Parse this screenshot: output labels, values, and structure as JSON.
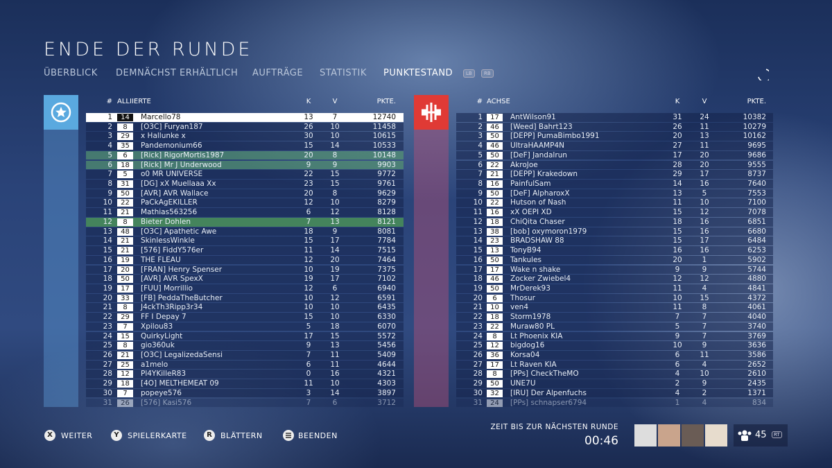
{
  "header": {
    "title": "ENDE DER RUNDE",
    "tabs": [
      "ÜBERBLICK",
      "DEMNÄCHST ERHÄLTLICH",
      "AUFTRÄGE",
      "STATISTIK",
      "PUNKTESTAND"
    ],
    "tab_badges": [
      "LB",
      "RB"
    ]
  },
  "teams": [
    {
      "header": {
        "rank": "#",
        "name": "ALLIIERTE",
        "k": "K",
        "v": "V",
        "score": "PKTE."
      },
      "rows": [
        [
          1,
          14,
          "Marcello78",
          13,
          7,
          12740
        ],
        [
          2,
          8,
          "[O3C] Furyan187",
          26,
          10,
          11458
        ],
        [
          3,
          29,
          "x Hallunke x",
          30,
          10,
          10615
        ],
        [
          4,
          35,
          "Pandemonium66",
          15,
          14,
          10533
        ],
        [
          5,
          6,
          "[Rick] RigorMortis1987",
          20,
          8,
          10148
        ],
        [
          6,
          18,
          "[Rick] Mr J Underwood",
          9,
          9,
          9903
        ],
        [
          7,
          5,
          "o0 MR UNIVERSE",
          22,
          15,
          9772
        ],
        [
          8,
          31,
          "[DG] xX Muellaaa Xx",
          23,
          15,
          9761
        ],
        [
          9,
          50,
          "[AVR] AVR Wallace",
          20,
          8,
          9629
        ],
        [
          10,
          22,
          "PaCkAgEKILLER",
          12,
          10,
          8279
        ],
        [
          11,
          21,
          "Mathias563256",
          6,
          12,
          8128
        ],
        [
          12,
          8,
          "Bieter Dohlen",
          7,
          13,
          8121
        ],
        [
          13,
          48,
          "[O3C] Apathetic Awe",
          18,
          9,
          8081
        ],
        [
          14,
          21,
          "SkinlessWinkle",
          15,
          17,
          7784
        ],
        [
          15,
          21,
          "[576] FiddY576er",
          11,
          14,
          7515
        ],
        [
          16,
          19,
          "THE FLEAU",
          12,
          20,
          7464
        ],
        [
          17,
          20,
          "[FRAN] Henry Spenser",
          10,
          19,
          7375
        ],
        [
          18,
          50,
          "[AVR] AVR SpexX",
          19,
          17,
          7102
        ],
        [
          19,
          17,
          "[FUU] Morrillio",
          12,
          6,
          6940
        ],
        [
          20,
          33,
          "[FB] PeddaTheButcher",
          10,
          12,
          6591
        ],
        [
          21,
          8,
          "J4ckTh3Ripp3r34",
          10,
          10,
          6435
        ],
        [
          22,
          29,
          "FF I Depay 7",
          15,
          10,
          6330
        ],
        [
          23,
          7,
          "Xpilou83",
          5,
          18,
          6070
        ],
        [
          24,
          15,
          "QuirkyLight",
          17,
          15,
          5572
        ],
        [
          25,
          8,
          "gio360uk",
          9,
          13,
          5456
        ],
        [
          26,
          21,
          "[O3C] LegalizedaSensi",
          7,
          11,
          5409
        ],
        [
          27,
          25,
          "a1melo",
          6,
          11,
          4644
        ],
        [
          28,
          12,
          "Pl4YKilleR83",
          0,
          16,
          4321
        ],
        [
          29,
          18,
          "[4O] MELTHEMEAT 09",
          11,
          10,
          4303
        ],
        [
          30,
          7,
          "popeye576",
          3,
          14,
          3897
        ],
        [
          31,
          26,
          "[576] Kasi576",
          7,
          6,
          3712
        ]
      ]
    },
    {
      "header": {
        "rank": "#",
        "name": "ACHSE",
        "k": "K",
        "v": "V",
        "score": "PKTE."
      },
      "rows": [
        [
          1,
          17,
          "AntWilson91",
          31,
          24,
          10382
        ],
        [
          2,
          46,
          "[Weed] Bahrt123",
          26,
          11,
          10279
        ],
        [
          3,
          50,
          "[DEPP] PumaBimbo1991",
          20,
          13,
          10162
        ],
        [
          4,
          46,
          "UltraHAAMP4N",
          27,
          11,
          9695
        ],
        [
          5,
          50,
          "[DeF] Jandalrun",
          17,
          20,
          9686
        ],
        [
          6,
          22,
          "AkroJoe",
          28,
          20,
          9555
        ],
        [
          7,
          21,
          "[DEPP] Krakedown",
          29,
          17,
          8737
        ],
        [
          8,
          16,
          "PainfulSam",
          14,
          16,
          7640
        ],
        [
          9,
          50,
          "[DeF] AlpharoxX",
          13,
          5,
          7553
        ],
        [
          10,
          22,
          "Hutson of Nash",
          11,
          10,
          7100
        ],
        [
          11,
          16,
          "xX OEPI XD",
          15,
          12,
          7078
        ],
        [
          12,
          18,
          "ChiQita Chaser",
          18,
          16,
          6851
        ],
        [
          13,
          38,
          "[bob] oxymoron1979",
          15,
          16,
          6680
        ],
        [
          14,
          23,
          "BRADSHAW 88",
          15,
          17,
          6484
        ],
        [
          15,
          13,
          "TonyB94",
          16,
          16,
          6253
        ],
        [
          16,
          50,
          "Tankules",
          20,
          1,
          5902
        ],
        [
          17,
          17,
          "Wake n shake",
          9,
          9,
          5744
        ],
        [
          18,
          46,
          "Zocker Zwiebel4",
          12,
          12,
          4880
        ],
        [
          19,
          50,
          "MrDerek93",
          11,
          4,
          4841
        ],
        [
          20,
          6,
          "Thosur",
          10,
          15,
          4372
        ],
        [
          21,
          10,
          "ven4",
          11,
          8,
          4061
        ],
        [
          22,
          18,
          "Storm1978",
          7,
          7,
          4040
        ],
        [
          23,
          22,
          "Muraw80 PL",
          5,
          7,
          3740
        ],
        [
          24,
          8,
          "Lt Phoenix KIA",
          9,
          7,
          3769
        ],
        [
          25,
          12,
          "bigdog16",
          10,
          9,
          3636
        ],
        [
          26,
          36,
          "Korsa04",
          6,
          11,
          3586
        ],
        [
          27,
          17,
          "Lt Raven KIA",
          6,
          4,
          2652
        ],
        [
          28,
          8,
          "[PPs] CheckTheMO",
          4,
          10,
          2610
        ],
        [
          29,
          50,
          "UNE7U",
          2,
          9,
          2435
        ],
        [
          30,
          32,
          "[IRU] Der Alpenfuchs",
          4,
          2,
          1371
        ],
        [
          31,
          24,
          "[PPs] schnapser6794",
          1,
          4,
          834
        ]
      ]
    }
  ],
  "footer": {
    "buttons": [
      {
        "key": "X",
        "label": "WEITER"
      },
      {
        "key": "Y",
        "label": "SPIELERKARTE"
      },
      {
        "key": "R",
        "label": "BLÄTTERN"
      },
      {
        "label": "BEENDEN"
      }
    ],
    "timer_label": "ZEIT BIS ZUR NÄCHSTEN RUNDE",
    "timer": "00:46",
    "player_count": "45",
    "player_badge": "RT"
  }
}
